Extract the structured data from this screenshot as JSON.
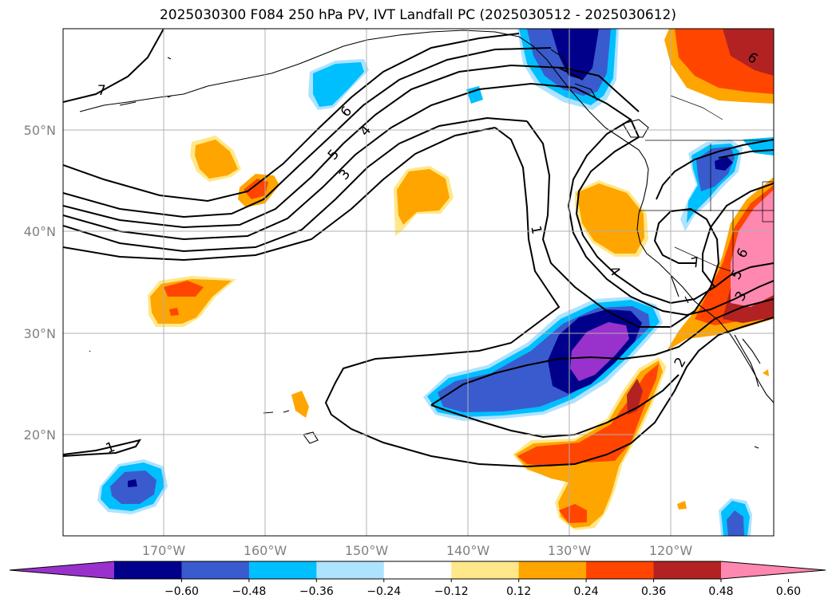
{
  "title": "2025030300 F084 250 hPa PV, IVT Landfall PC (2025030512 - 2025030612)",
  "map": {
    "lon_labels": [
      "170°W",
      "160°W",
      "150°W",
      "140°W",
      "130°W",
      "120°W"
    ],
    "lat_labels": [
      "50°N",
      "40°N",
      "30°N",
      "20°N"
    ],
    "contour_labels": [
      "7",
      "6",
      "5",
      "4",
      "3",
      "1",
      "1",
      "4",
      "2",
      "7",
      "6",
      "5",
      "3",
      "6"
    ]
  },
  "colorbar": {
    "ticks": [
      "−0.60",
      "−0.48",
      "−0.36",
      "−0.24",
      "−0.12",
      "0.12",
      "0.24",
      "0.36",
      "0.48",
      "0.60"
    ],
    "colors": [
      "#9932cc",
      "#00008b",
      "#3a5bcd",
      "#00bfff",
      "#aee3ff",
      "#ffffff",
      "#ffe88a",
      "#ffa500",
      "#ff4500",
      "#b22222",
      "#ff88b0"
    ]
  }
}
